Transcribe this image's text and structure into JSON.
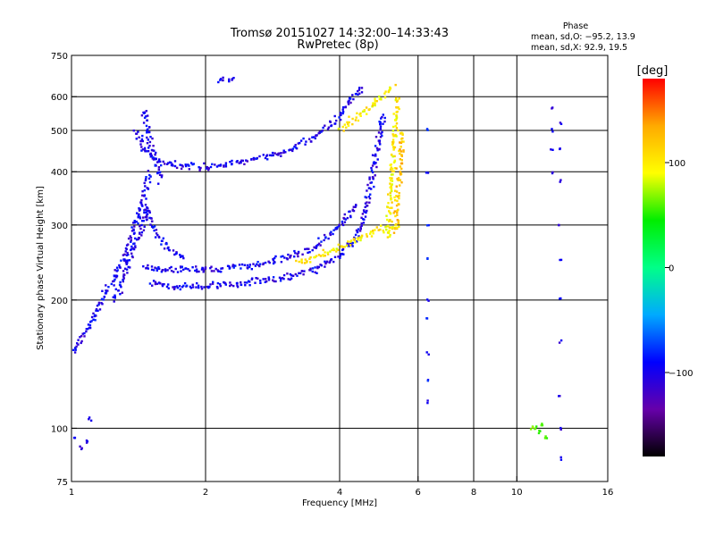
{
  "chart_data": {
    "type": "scatter",
    "title": "Tromsø 20151027 14:32:00–14:33:43",
    "subtitle": "RwPretec (8p)",
    "xlabel": "Frequency [MHz]",
    "ylabel": "Stationary phase Virtual Height [km]",
    "x_scale": "log",
    "y_scale": "log",
    "xlim": [
      1,
      16
    ],
    "ylim": [
      75,
      750
    ],
    "x_ticks": [
      {
        "value": 1,
        "label": "1"
      },
      {
        "value": 2,
        "label": "2"
      },
      {
        "value": 4,
        "label": "4"
      },
      {
        "value": 6,
        "label": "6"
      },
      {
        "value": 8,
        "label": "8"
      },
      {
        "value": 10,
        "label": "10"
      },
      {
        "value": 16,
        "label": "16"
      }
    ],
    "y_ticks": [
      {
        "value": 75,
        "label": "75"
      },
      {
        "value": 100,
        "label": "100"
      },
      {
        "value": 200,
        "label": "200"
      },
      {
        "value": 300,
        "label": "300"
      },
      {
        "value": 400,
        "label": "400"
      },
      {
        "value": 500,
        "label": "500"
      },
      {
        "value": 600,
        "label": "600"
      },
      {
        "value": 750,
        "label": "750"
      }
    ],
    "x_gridlines": [
      2,
      4,
      6,
      8,
      10
    ],
    "y_gridlines": [
      100,
      200,
      300,
      400,
      500,
      600
    ],
    "grid": true,
    "stats": {
      "header": "Phase",
      "line_o": "mean, sd,O: −95.2, 13.9",
      "line_x": "mean, sd,X:  92.9, 19.5"
    },
    "colorbar": {
      "label": "[deg]",
      "range": [
        -180,
        180
      ],
      "ticks": [
        {
          "value": 100,
          "label": "100"
        },
        {
          "value": 0,
          "label": "0"
        },
        {
          "value": -100,
          "label": "−100"
        }
      ],
      "colors": [
        "#000000",
        "#6600aa",
        "#0000ff",
        "#00aaff",
        "#00ff88",
        "#00ee00",
        "#ffff00",
        "#ffaa00",
        "#ff0000"
      ]
    },
    "series": [
      {
        "name": "",
        "trace_type": "curve",
        "phase": -100,
        "points": [
          [
            1.0,
            150
          ],
          [
            1.1,
            175
          ],
          [
            1.2,
            210
          ],
          [
            1.3,
            245
          ],
          [
            1.38,
            290
          ],
          [
            1.45,
            340
          ],
          [
            1.5,
            400
          ]
        ]
      },
      {
        "name": "",
        "trace_type": "curve",
        "phase": -100,
        "points": [
          [
            1.25,
            200
          ],
          [
            1.35,
            250
          ],
          [
            1.45,
            300
          ],
          [
            1.5,
            330
          ]
        ]
      },
      {
        "name": "",
        "trace_type": "curve",
        "phase": -100,
        "points": [
          [
            1.5,
            220
          ],
          [
            1.7,
            215
          ],
          [
            2.0,
            215
          ],
          [
            2.5,
            220
          ],
          [
            3.0,
            225
          ],
          [
            3.5,
            235
          ],
          [
            4.0,
            255
          ],
          [
            4.3,
            275
          ],
          [
            4.5,
            300
          ],
          [
            4.6,
            335
          ],
          [
            4.7,
            375
          ],
          [
            4.8,
            420
          ],
          [
            4.9,
            470
          ],
          [
            5.0,
            550
          ]
        ]
      },
      {
        "name": "",
        "trace_type": "curve",
        "phase": -100,
        "points": [
          [
            1.45,
            240
          ],
          [
            1.6,
            235
          ],
          [
            2.0,
            235
          ],
          [
            2.5,
            240
          ],
          [
            3.0,
            250
          ],
          [
            3.5,
            265
          ],
          [
            4.0,
            300
          ],
          [
            4.4,
            340
          ]
        ]
      },
      {
        "name": "",
        "trace_type": "curve",
        "phase": -100,
        "points": [
          [
            1.4,
            500
          ],
          [
            1.45,
            450
          ],
          [
            1.6,
            420
          ],
          [
            1.8,
            412
          ],
          [
            2.0,
            410
          ],
          [
            2.5,
            425
          ],
          [
            3.0,
            445
          ],
          [
            3.5,
            480
          ],
          [
            4.0,
            540
          ],
          [
            4.3,
            600
          ],
          [
            4.5,
            635
          ]
        ]
      },
      {
        "name": "",
        "trace_type": "curve",
        "phase": -100,
        "points": [
          [
            1.45,
            560
          ],
          [
            1.47,
            520
          ],
          [
            1.5,
            470
          ],
          [
            1.55,
            420
          ],
          [
            1.6,
            380
          ]
        ]
      },
      {
        "name": "",
        "trace_type": "curve",
        "phase": -100,
        "points": [
          [
            1.45,
            330
          ],
          [
            1.55,
            290
          ],
          [
            1.65,
            265
          ],
          [
            1.8,
            250
          ]
        ]
      },
      {
        "name": "",
        "trace_type": "curve",
        "phase": 100,
        "points": [
          [
            3.2,
            245
          ],
          [
            3.5,
            250
          ],
          [
            4.0,
            265
          ],
          [
            4.5,
            280
          ],
          [
            5.0,
            295
          ],
          [
            5.4,
            300
          ]
        ]
      },
      {
        "name": "",
        "trace_type": "curve",
        "phase": 100,
        "points": [
          [
            4.0,
            500
          ],
          [
            4.3,
            530
          ],
          [
            4.6,
            560
          ],
          [
            5.0,
            600
          ],
          [
            5.3,
            640
          ]
        ]
      },
      {
        "name": "",
        "trace_type": "curve",
        "phase": 100,
        "points": [
          [
            5.15,
            280
          ],
          [
            5.2,
            330
          ],
          [
            5.25,
            400
          ],
          [
            5.3,
            470
          ],
          [
            5.35,
            540
          ],
          [
            5.4,
            600
          ]
        ]
      },
      {
        "name": "",
        "trace_type": "curve",
        "phase": 120,
        "points": [
          [
            5.35,
            290
          ],
          [
            5.4,
            340
          ],
          [
            5.45,
            400
          ],
          [
            5.5,
            450
          ],
          [
            5.55,
            500
          ]
        ]
      },
      {
        "name": "",
        "trace_type": "column",
        "phase": -90,
        "points": [
          [
            6.3,
            115
          ],
          [
            6.3,
            130
          ],
          [
            6.3,
            150
          ],
          [
            6.3,
            180
          ],
          [
            6.3,
            200
          ],
          [
            6.3,
            250
          ],
          [
            6.3,
            300
          ],
          [
            6.3,
            400
          ],
          [
            6.3,
            500
          ]
        ]
      },
      {
        "name": "",
        "trace_type": "column",
        "phase": -100,
        "points": [
          [
            12.5,
            85
          ],
          [
            12.5,
            100
          ],
          [
            12.5,
            120
          ],
          [
            12.5,
            160
          ],
          [
            12.5,
            200
          ],
          [
            12.5,
            250
          ],
          [
            12.5,
            300
          ],
          [
            12.5,
            380
          ],
          [
            12.5,
            450
          ],
          [
            12.5,
            520
          ]
        ]
      },
      {
        "name": "",
        "trace_type": "column",
        "phase": -100,
        "points": [
          [
            12.0,
            400
          ],
          [
            12.0,
            450
          ],
          [
            12.0,
            500
          ],
          [
            12.0,
            560
          ]
        ]
      },
      {
        "name": "",
        "trace_type": "cluster",
        "phase": 60,
        "points": [
          [
            11.0,
            100
          ],
          [
            11.2,
            98
          ],
          [
            11.4,
            102
          ],
          [
            11.6,
            95
          ],
          [
            10.8,
            100
          ]
        ]
      },
      {
        "name": "",
        "trace_type": "cluster",
        "phase": -100,
        "points": [
          [
            1.02,
            95
          ],
          [
            1.08,
            93
          ],
          [
            1.1,
            105
          ],
          [
            1.05,
            90
          ]
        ]
      },
      {
        "name": "",
        "trace_type": "cluster",
        "phase": -100,
        "points": [
          [
            2.15,
            655
          ],
          [
            2.2,
            660
          ],
          [
            2.25,
            655
          ],
          [
            2.3,
            658
          ]
        ]
      }
    ]
  }
}
